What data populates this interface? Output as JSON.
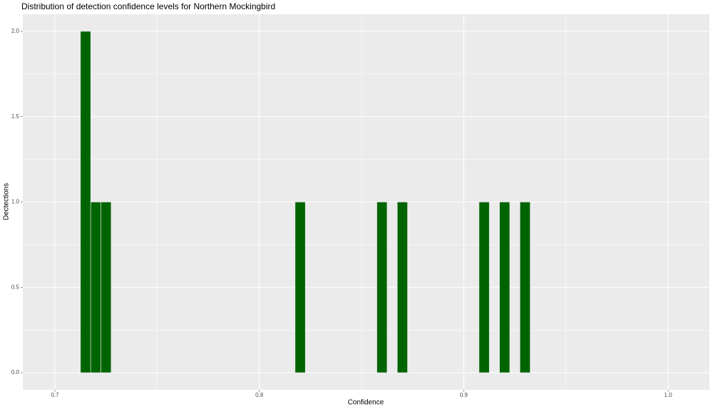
{
  "chart_data": {
    "type": "histogram",
    "title": "Distribution of detection confidence levels for Northern Mockingbird",
    "x_label": "Confidence",
    "y_label": "Dectections",
    "bins": [
      0.7125,
      0.7175,
      0.7225,
      0.7275,
      0.7325,
      0.7375,
      0.7425,
      0.7475,
      0.7525,
      0.7575,
      0.7625,
      0.7675,
      0.7725,
      0.7775,
      0.7825,
      0.7875,
      0.7925,
      0.7975,
      0.8025,
      0.8075,
      0.8125,
      0.8175,
      0.8225,
      0.8275,
      0.8325,
      0.8375,
      0.8425,
      0.8475,
      0.8525,
      0.8575,
      0.8625,
      0.8675,
      0.8725,
      0.8775,
      0.8825,
      0.8875,
      0.8925,
      0.8975,
      0.9025,
      0.9075,
      0.9125,
      0.9175,
      0.9225,
      0.9275,
      0.9325
    ],
    "values": [
      2,
      1,
      1,
      0,
      0,
      0,
      0,
      0,
      0,
      0,
      0,
      0,
      0,
      0,
      0,
      0,
      0,
      0,
      0,
      0,
      0,
      1,
      0,
      0,
      0,
      0,
      0,
      0,
      0,
      1,
      0,
      1,
      0,
      0,
      0,
      0,
      0,
      0,
      0,
      1,
      0,
      1,
      0,
      1
    ],
    "color": "#006400",
    "xlim": [
      0.6843,
      1.0202
    ],
    "xticks": [
      0.7,
      0.8,
      0.9,
      {
        "value": 1.0,
        "label": "1.0"
      }
    ],
    "ylim": [
      -0.1,
      2.1
    ],
    "yticks": [
      {
        "value": 0,
        "label": "0.0"
      },
      0.5,
      {
        "value": 1,
        "label": "1.0"
      },
      1.5,
      {
        "value": 2,
        "label": "2.0"
      }
    ],
    "grid": true
  }
}
